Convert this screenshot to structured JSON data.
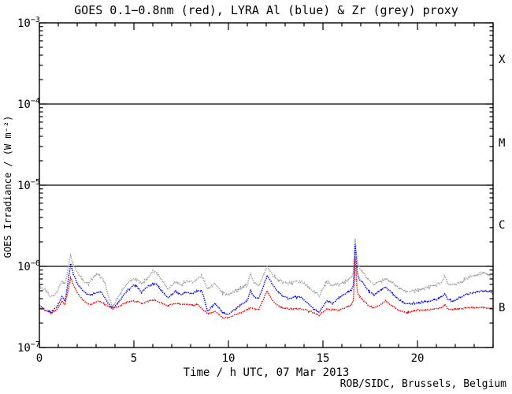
{
  "credit": "ROB/SIDC, Brussels, Belgium",
  "chart_data": {
    "type": "scatter",
    "title": "GOES 0.1−0.8nm (red), LYRA Al (blue) & Zr (grey) proxy",
    "xlabel": "Time / h UTC, 07 Mar 2013",
    "ylabel": "GOES Irradiance / (W m⁻²)",
    "xlim": [
      0,
      24
    ],
    "x_major_ticks": [
      0,
      5,
      10,
      15,
      20
    ],
    "x_minor_step": 1,
    "ylog": true,
    "ylim": [
      1e-07,
      0.001
    ],
    "y_tick_exponents": [
      -3,
      -4,
      -5,
      -6,
      -7
    ],
    "hlines": [
      0.0001,
      1e-05,
      1e-06
    ],
    "flare_class_labels": [
      "X",
      "M",
      "C",
      "B"
    ],
    "grid": false,
    "legend_position": "none",
    "series": [
      {
        "name": "LYRA Zr proxy",
        "color": "#a3a3a3",
        "points": [
          [
            0.0,
            5.7e-07
          ],
          [
            0.3,
            5.1e-07
          ],
          [
            0.6,
            4.2e-07
          ],
          [
            0.9,
            4.7e-07
          ],
          [
            1.2,
            6.5e-07
          ],
          [
            1.35,
            6.1e-07
          ],
          [
            1.5,
            9e-07
          ],
          [
            1.65,
            1.4e-06
          ],
          [
            1.8,
            1.05e-06
          ],
          [
            2.0,
            8.6e-07
          ],
          [
            2.3,
            6.8e-07
          ],
          [
            2.6,
            6.1e-07
          ],
          [
            2.9,
            7.6e-07
          ],
          [
            3.1,
            8e-07
          ],
          [
            3.3,
            7.3e-07
          ],
          [
            3.5,
            5.9e-07
          ],
          [
            3.7,
            3.9e-07
          ],
          [
            3.9,
            3.2e-07
          ],
          [
            4.1,
            3.9e-07
          ],
          [
            4.4,
            5.1e-07
          ],
          [
            4.7,
            6.4e-07
          ],
          [
            5.0,
            7e-07
          ],
          [
            5.2,
            6.7e-07
          ],
          [
            5.4,
            6.1e-07
          ],
          [
            5.7,
            7.1e-07
          ],
          [
            6.0,
            8.6e-07
          ],
          [
            6.2,
            8.4e-07
          ],
          [
            6.5,
            6.7e-07
          ],
          [
            6.8,
            5.2e-07
          ],
          [
            7.2,
            6.4e-07
          ],
          [
            7.5,
            5.9e-07
          ],
          [
            7.8,
            6.6e-07
          ],
          [
            8.1,
            6.4e-07
          ],
          [
            8.4,
            7.1e-07
          ],
          [
            8.6,
            7.6e-07
          ],
          [
            8.9,
            5.2e-07
          ],
          [
            9.3,
            6.1e-07
          ],
          [
            9.7,
            4.6e-07
          ],
          [
            10.0,
            4.5e-07
          ],
          [
            10.3,
            4.9e-07
          ],
          [
            10.7,
            5.4e-07
          ],
          [
            11.0,
            5.9e-07
          ],
          [
            11.17,
            8.2e-07
          ],
          [
            11.35,
            6.4e-07
          ],
          [
            11.6,
            5.7e-07
          ],
          [
            11.8,
            7.3e-07
          ],
          [
            12.05,
            1e-06
          ],
          [
            12.3,
            8e-07
          ],
          [
            12.6,
            6.8e-07
          ],
          [
            12.9,
            6.4e-07
          ],
          [
            13.2,
            6.1e-07
          ],
          [
            13.5,
            6.4e-07
          ],
          [
            13.8,
            6.5e-07
          ],
          [
            14.1,
            5.9e-07
          ],
          [
            14.5,
            4.9e-07
          ],
          [
            14.8,
            4.4e-07
          ],
          [
            15.2,
            6.5e-07
          ],
          [
            15.5,
            5.9e-07
          ],
          [
            15.9,
            6e-07
          ],
          [
            16.2,
            6.5e-07
          ],
          [
            16.5,
            7.3e-07
          ],
          [
            16.62,
            8.6e-07
          ],
          [
            16.7,
            2.2e-06
          ],
          [
            16.82,
            1.15e-06
          ],
          [
            16.95,
            9.1e-07
          ],
          [
            17.1,
            8.6e-07
          ],
          [
            17.4,
            6.8e-07
          ],
          [
            17.7,
            6.1e-07
          ],
          [
            18.0,
            6.4e-07
          ],
          [
            18.3,
            7e-07
          ],
          [
            18.6,
            6.4e-07
          ],
          [
            19.0,
            5.4e-07
          ],
          [
            19.4,
            4.9e-07
          ],
          [
            19.8,
            5e-07
          ],
          [
            20.2,
            5.2e-07
          ],
          [
            20.6,
            5.6e-07
          ],
          [
            21.0,
            5.9e-07
          ],
          [
            21.3,
            6.4e-07
          ],
          [
            21.45,
            7.8e-07
          ],
          [
            21.6,
            6.1e-07
          ],
          [
            21.9,
            5.9e-07
          ],
          [
            22.3,
            6.5e-07
          ],
          [
            22.7,
            7.3e-07
          ],
          [
            23.1,
            7.8e-07
          ],
          [
            23.5,
            8.4e-07
          ],
          [
            23.8,
            7.8e-07
          ],
          [
            24.0,
            6.7e-07
          ]
        ]
      },
      {
        "name": "LYRA Al proxy",
        "color": "#0000ee",
        "points": [
          [
            0.0,
            3.3e-07
          ],
          [
            0.3,
            2.9e-07
          ],
          [
            0.6,
            2.7e-07
          ],
          [
            0.9,
            3.1e-07
          ],
          [
            1.2,
            4.2e-07
          ],
          [
            1.35,
            3.7e-07
          ],
          [
            1.5,
            6e-07
          ],
          [
            1.65,
            1.08e-06
          ],
          [
            1.8,
            8e-07
          ],
          [
            2.0,
            6.2e-07
          ],
          [
            2.3,
            5e-07
          ],
          [
            2.6,
            4.4e-07
          ],
          [
            2.9,
            4.6e-07
          ],
          [
            3.1,
            4.9e-07
          ],
          [
            3.3,
            4.7e-07
          ],
          [
            3.5,
            3.9e-07
          ],
          [
            3.7,
            3.34e-07
          ],
          [
            3.9,
            3.05e-07
          ],
          [
            4.1,
            3.34e-07
          ],
          [
            4.4,
            4.2e-07
          ],
          [
            4.7,
            5.2e-07
          ],
          [
            5.0,
            5.9e-07
          ],
          [
            5.2,
            5.5e-07
          ],
          [
            5.4,
            4.8e-07
          ],
          [
            5.7,
            5.6e-07
          ],
          [
            6.0,
            6.1e-07
          ],
          [
            6.2,
            6e-07
          ],
          [
            6.5,
            4.9e-07
          ],
          [
            6.8,
            4.1e-07
          ],
          [
            7.2,
            4.9e-07
          ],
          [
            7.5,
            4.5e-07
          ],
          [
            7.8,
            4.8e-07
          ],
          [
            8.1,
            4.6e-07
          ],
          [
            8.4,
            5.1e-07
          ],
          [
            8.6,
            5e-07
          ],
          [
            8.9,
            2.8e-07
          ],
          [
            9.3,
            3.5e-07
          ],
          [
            9.7,
            2.7e-07
          ],
          [
            10.0,
            2.6e-07
          ],
          [
            10.3,
            2.9e-07
          ],
          [
            10.7,
            3.4e-07
          ],
          [
            11.0,
            3.8e-07
          ],
          [
            11.17,
            5.1e-07
          ],
          [
            11.35,
            4.2e-07
          ],
          [
            11.6,
            4e-07
          ],
          [
            11.8,
            5.3e-07
          ],
          [
            12.05,
            7.8e-07
          ],
          [
            12.3,
            6.2e-07
          ],
          [
            12.6,
            4.9e-07
          ],
          [
            12.9,
            4.3e-07
          ],
          [
            13.2,
            4e-07
          ],
          [
            13.5,
            4.2e-07
          ],
          [
            13.8,
            4.2e-07
          ],
          [
            14.1,
            3.7e-07
          ],
          [
            14.5,
            3e-07
          ],
          [
            14.8,
            2.7e-07
          ],
          [
            15.2,
            3.8e-07
          ],
          [
            15.5,
            3.5e-07
          ],
          [
            15.9,
            4.2e-07
          ],
          [
            16.2,
            4.6e-07
          ],
          [
            16.5,
            5.1e-07
          ],
          [
            16.62,
            6e-07
          ],
          [
            16.7,
            1.9e-06
          ],
          [
            16.82,
            8.2e-07
          ],
          [
            16.95,
            6.8e-07
          ],
          [
            17.1,
            6.4e-07
          ],
          [
            17.4,
            5e-07
          ],
          [
            17.7,
            4.4e-07
          ],
          [
            18.0,
            5e-07
          ],
          [
            18.3,
            5.6e-07
          ],
          [
            18.6,
            4.8e-07
          ],
          [
            19.0,
            3.9e-07
          ],
          [
            19.4,
            3.4e-07
          ],
          [
            19.8,
            3.5e-07
          ],
          [
            20.2,
            3.6e-07
          ],
          [
            20.6,
            3.7e-07
          ],
          [
            21.0,
            3.9e-07
          ],
          [
            21.3,
            4.2e-07
          ],
          [
            21.45,
            4.6e-07
          ],
          [
            21.6,
            3.9e-07
          ],
          [
            21.9,
            3.7e-07
          ],
          [
            22.3,
            4.2e-07
          ],
          [
            22.7,
            4.6e-07
          ],
          [
            23.1,
            4.8e-07
          ],
          [
            23.5,
            5e-07
          ],
          [
            23.8,
            4.9e-07
          ],
          [
            24.0,
            4.5e-07
          ]
        ]
      },
      {
        "name": "GOES 0.1-0.8nm",
        "color": "#ee0000",
        "points": [
          [
            0.0,
            3.05e-07
          ],
          [
            0.3,
            2.9e-07
          ],
          [
            0.6,
            2.65e-07
          ],
          [
            0.9,
            2.9e-07
          ],
          [
            1.2,
            3.7e-07
          ],
          [
            1.35,
            3.4e-07
          ],
          [
            1.5,
            4.8e-07
          ],
          [
            1.65,
            7.3e-07
          ],
          [
            1.8,
            5.9e-07
          ],
          [
            2.0,
            4.7e-07
          ],
          [
            2.3,
            3.8e-07
          ],
          [
            2.6,
            3.4e-07
          ],
          [
            2.9,
            3.5e-07
          ],
          [
            3.1,
            3.7e-07
          ],
          [
            3.3,
            3.6e-07
          ],
          [
            3.5,
            3.34e-07
          ],
          [
            3.7,
            3.13e-07
          ],
          [
            3.9,
            3e-07
          ],
          [
            4.1,
            3.13e-07
          ],
          [
            4.4,
            3.4e-07
          ],
          [
            4.7,
            3.66e-07
          ],
          [
            5.0,
            3.74e-07
          ],
          [
            5.2,
            3.66e-07
          ],
          [
            5.4,
            3.5e-07
          ],
          [
            5.7,
            3.66e-07
          ],
          [
            6.0,
            3.85e-07
          ],
          [
            6.2,
            3.74e-07
          ],
          [
            6.5,
            3.5e-07
          ],
          [
            6.8,
            3.27e-07
          ],
          [
            7.2,
            3.5e-07
          ],
          [
            7.5,
            3.4e-07
          ],
          [
            7.8,
            3.4e-07
          ],
          [
            8.1,
            3.3e-07
          ],
          [
            8.4,
            3.34e-07
          ],
          [
            8.6,
            3e-07
          ],
          [
            8.9,
            2.6e-07
          ],
          [
            9.3,
            2.8e-07
          ],
          [
            9.7,
            2.3e-07
          ],
          [
            10.0,
            2.35e-07
          ],
          [
            10.3,
            2.5e-07
          ],
          [
            10.7,
            2.7e-07
          ],
          [
            11.0,
            2.9e-07
          ],
          [
            11.17,
            3.1e-07
          ],
          [
            11.35,
            3e-07
          ],
          [
            11.6,
            2.9e-07
          ],
          [
            11.8,
            3.7e-07
          ],
          [
            12.05,
            5e-07
          ],
          [
            12.3,
            3.9e-07
          ],
          [
            12.6,
            3.3e-07
          ],
          [
            12.9,
            3.1e-07
          ],
          [
            13.2,
            3e-07
          ],
          [
            13.5,
            3e-07
          ],
          [
            13.8,
            3e-07
          ],
          [
            14.1,
            2.9e-07
          ],
          [
            14.5,
            2.7e-07
          ],
          [
            14.8,
            2.5e-07
          ],
          [
            15.2,
            3e-07
          ],
          [
            15.5,
            2.9e-07
          ],
          [
            15.9,
            2.9e-07
          ],
          [
            16.2,
            3.1e-07
          ],
          [
            16.5,
            3.3e-07
          ],
          [
            16.62,
            3.9e-07
          ],
          [
            16.7,
            1.25e-06
          ],
          [
            16.82,
            4.8e-07
          ],
          [
            16.95,
            4.2e-07
          ],
          [
            17.1,
            3.9e-07
          ],
          [
            17.4,
            3.3e-07
          ],
          [
            17.7,
            3.1e-07
          ],
          [
            18.0,
            3.3e-07
          ],
          [
            18.3,
            3.8e-07
          ],
          [
            18.6,
            3.3e-07
          ],
          [
            19.0,
            2.9e-07
          ],
          [
            19.4,
            2.7e-07
          ],
          [
            19.8,
            2.8e-07
          ],
          [
            20.2,
            2.9e-07
          ],
          [
            20.6,
            2.9e-07
          ],
          [
            21.0,
            3e-07
          ],
          [
            21.3,
            3.1e-07
          ],
          [
            21.45,
            3.4e-07
          ],
          [
            21.6,
            3e-07
          ],
          [
            21.9,
            2.95e-07
          ],
          [
            22.3,
            3e-07
          ],
          [
            22.7,
            3.1e-07
          ],
          [
            23.1,
            3.1e-07
          ],
          [
            23.5,
            3.1e-07
          ],
          [
            23.8,
            3.05e-07
          ],
          [
            24.0,
            3e-07
          ]
        ]
      }
    ]
  }
}
